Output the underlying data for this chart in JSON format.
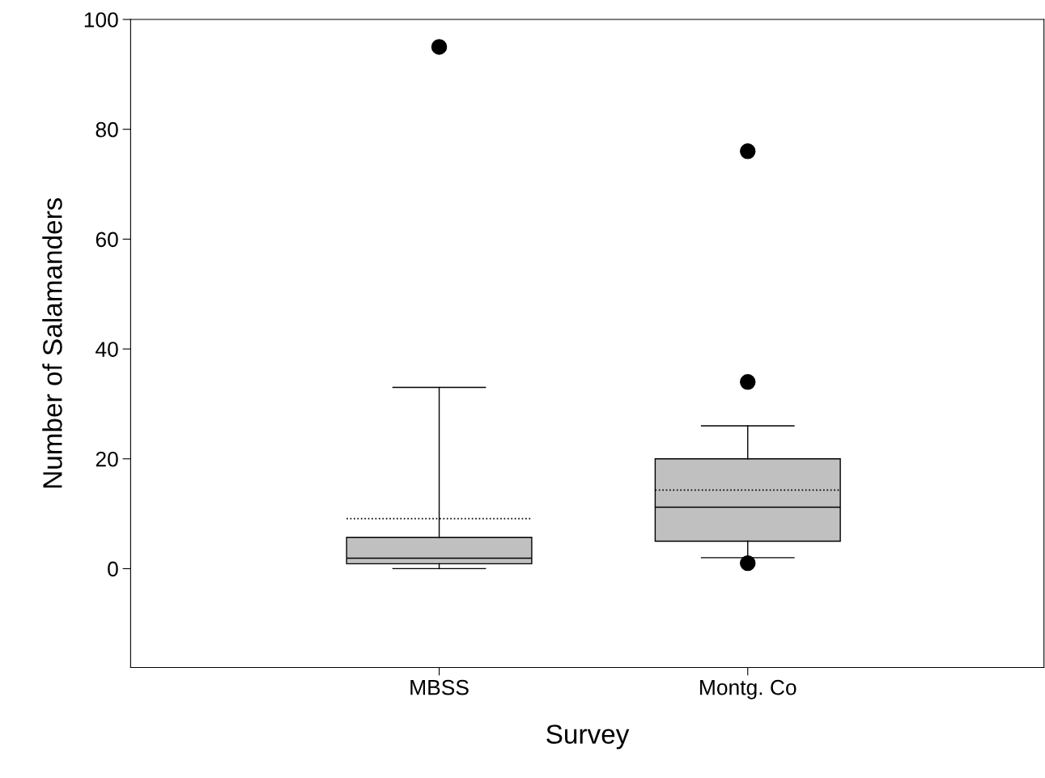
{
  "chart_data": {
    "type": "box",
    "xlabel": "Survey",
    "ylabel": "Number of Salamanders",
    "categories": [
      "MBSS",
      "Montg. Co"
    ],
    "boxes": [
      {
        "low": 0,
        "q1": 0.9,
        "median": 1.9,
        "q3": 5.7,
        "high": 33,
        "mean": 9.1,
        "outliers": [
          95
        ]
      },
      {
        "low": 2,
        "q1": 5,
        "median": 11.2,
        "q3": 20,
        "high": 26,
        "mean": 14.3,
        "outliers": [
          76,
          34,
          1
        ]
      }
    ],
    "color": "#c0c0c0",
    "ylim": [
      -18,
      100
    ],
    "yticks": [
      0,
      20,
      40,
      60,
      80,
      100
    ],
    "grid": false
  }
}
